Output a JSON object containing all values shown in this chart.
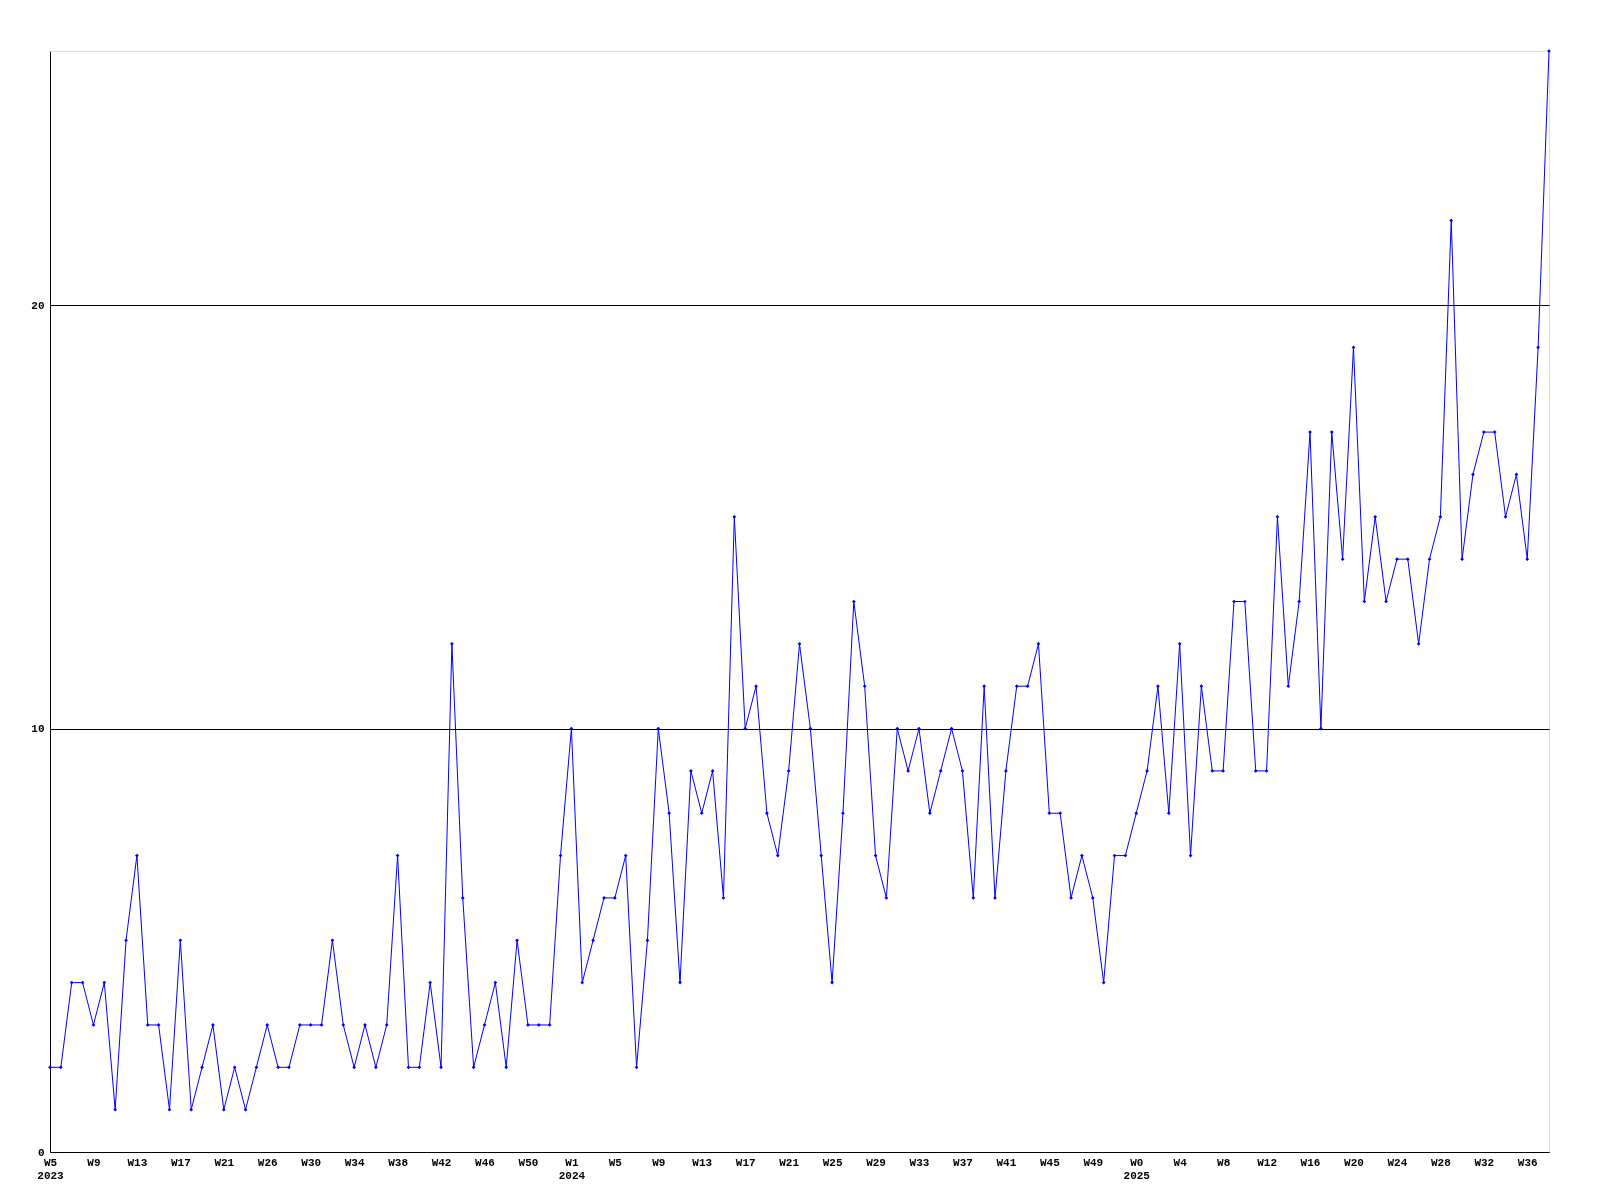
{
  "chart_data": {
    "type": "line",
    "categories": [
      "W5\n2023",
      null,
      null,
      null,
      "W9",
      null,
      null,
      null,
      "W13",
      null,
      null,
      null,
      "W17",
      null,
      null,
      null,
      "W21",
      null,
      null,
      null,
      "W26",
      null,
      null,
      null,
      "W30",
      null,
      null,
      null,
      "W34",
      null,
      null,
      null,
      "W38",
      null,
      null,
      null,
      "W42",
      null,
      null,
      null,
      "W46",
      null,
      null,
      null,
      "W50",
      null,
      null,
      null,
      "W1\n2024",
      null,
      null,
      null,
      "W5",
      null,
      null,
      null,
      "W9",
      null,
      null,
      null,
      "W13",
      null,
      null,
      null,
      "W17",
      null,
      null,
      null,
      "W21",
      null,
      null,
      null,
      "W25",
      null,
      null,
      null,
      "W29",
      null,
      null,
      null,
      "W33",
      null,
      null,
      null,
      "W37",
      null,
      null,
      null,
      "W41",
      null,
      null,
      null,
      "W45",
      null,
      null,
      null,
      "W49",
      null,
      null,
      null,
      "W0\n2025",
      null,
      null,
      null,
      "W4",
      null,
      null,
      null,
      "W8",
      null,
      null,
      null,
      "W12",
      null,
      null,
      null,
      "W16",
      null,
      null,
      null,
      "W20",
      null,
      null,
      null,
      "W24",
      null,
      null,
      null,
      "W28",
      null,
      null,
      null,
      "W32",
      null,
      null,
      null,
      "W36",
      null,
      null
    ],
    "series": [
      {
        "color": "#0000ff",
        "values": [
          2,
          2,
          4,
          4,
          3,
          4,
          1,
          5,
          7,
          3,
          3,
          1,
          5,
          1,
          2,
          3,
          1,
          2,
          1,
          2,
          3,
          2,
          2,
          3,
          3,
          3,
          5,
          3,
          2,
          3,
          2,
          3,
          7,
          2,
          2,
          4,
          2,
          12,
          6,
          2,
          3,
          4,
          2,
          5,
          3,
          3,
          3,
          7,
          10,
          4,
          5,
          6,
          6,
          7,
          2,
          5,
          10,
          8,
          4,
          9,
          8,
          9,
          6,
          15,
          10,
          11,
          8,
          7,
          9,
          12,
          10,
          7,
          4,
          8,
          13,
          11,
          7,
          6,
          10,
          9,
          10,
          8,
          9,
          10,
          9,
          6,
          11,
          6,
          9,
          11,
          11,
          12,
          8,
          8,
          6,
          7,
          6,
          4,
          7,
          7,
          8,
          9,
          11,
          8,
          12,
          7,
          11,
          9,
          9,
          13,
          13,
          9,
          9,
          15,
          11,
          13,
          17,
          10,
          17,
          14,
          19,
          13,
          15,
          13,
          14,
          14,
          12,
          14,
          15,
          22,
          14,
          16,
          17,
          17,
          15,
          16,
          14,
          19,
          26
        ]
      }
    ],
    "ylim": [
      0,
      26
    ],
    "yticks": [
      0,
      10,
      20
    ],
    "grid": "y",
    "marker": "diamond",
    "line_style": "solid"
  }
}
